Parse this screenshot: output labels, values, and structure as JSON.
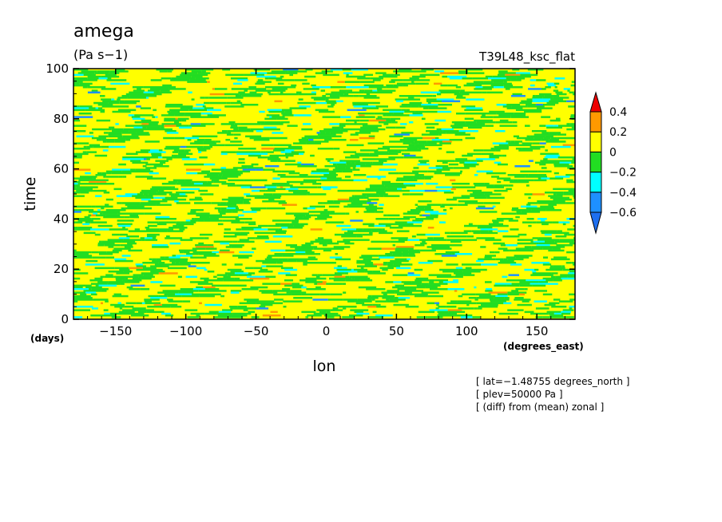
{
  "chart_data": {
    "type": "heatmap",
    "title": "amega",
    "units": "(Pa s−1)",
    "experiment": "T39L48_ksc_flat",
    "xlabel": "lon",
    "ylabel": "time",
    "x_unit_label": "(degrees_east)",
    "y_unit_label": "(days)",
    "xlim": [
      -180,
      177.2
    ],
    "ylim": [
      0,
      100
    ],
    "x_ticks": [
      -150,
      -100,
      -50,
      0,
      50,
      100,
      150
    ],
    "x_tick_labels": [
      "−150",
      "−100",
      "−50",
      "0",
      "50",
      "100",
      "150"
    ],
    "y_ticks": [
      0,
      20,
      40,
      60,
      80,
      100
    ],
    "y_tick_labels": [
      "0",
      "20",
      "40",
      "60",
      "80",
      "100"
    ],
    "colorbar": {
      "bounds": [
        -0.6,
        -0.4,
        -0.2,
        0,
        0.2,
        0.4
      ],
      "labels": [
        "−0.6",
        "−0.4",
        "−0.2",
        "0",
        "0.2",
        "0.4"
      ],
      "colors": {
        "under": "#1e6ff0",
        "b_-0.6_-0.4": "#1e90ff",
        "b_-0.4_-0.2": "#00ffff",
        "b_-0.2_0": "#22dd22",
        "b_0_0.2": "#ffff00",
        "b_0.2_0.4": "#ff9900",
        "over": "#ee0000"
      }
    },
    "annotations": [
      "[ lat=−1.48755 degrees_north ]",
      "[ plev=50000 Pa ]",
      "[ (diff) from (mean) zonal ]"
    ]
  }
}
